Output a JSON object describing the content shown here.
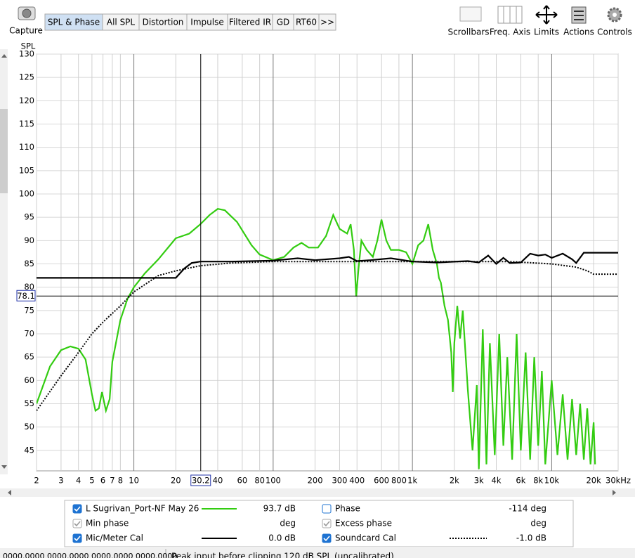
{
  "toolbar": {
    "capture": "Capture",
    "tabs": [
      "SPL & Phase",
      "All SPL",
      "Distortion",
      "Impulse",
      "Filtered IR",
      "GD",
      "RT60",
      ">>"
    ],
    "tools": [
      "Scrollbars",
      "Freq. Axis",
      "Limits",
      "Actions",
      "Controls"
    ]
  },
  "chart_data": {
    "type": "line",
    "ylabel": "SPL",
    "xscale": "log",
    "grid": true,
    "xlim": [
      2,
      30000
    ],
    "ylim": [
      40.6,
      130
    ],
    "xticks": [
      2,
      3,
      4,
      5,
      6,
      7,
      8,
      10,
      20,
      40,
      60,
      80,
      100,
      200,
      300,
      400,
      600,
      800,
      {
        "value": 1000,
        "label": "1k"
      },
      {
        "value": 2000,
        "label": "2k"
      },
      {
        "value": 3000,
        "label": "3k"
      },
      {
        "value": 4000,
        "label": "4k"
      },
      {
        "value": 6000,
        "label": "6k"
      },
      {
        "value": 8000,
        "label": "8k"
      },
      {
        "value": 10000,
        "label": "10k"
      },
      {
        "value": 20000,
        "label": "20k"
      },
      {
        "value": 30000,
        "label": "30kHz"
      }
    ],
    "yticks": [
      45,
      50,
      55,
      60,
      65,
      70,
      75,
      80,
      85,
      90,
      95,
      100,
      105,
      110,
      115,
      120,
      125,
      130
    ],
    "cursor_x": 30.2,
    "cursor_y": 78.1,
    "series": [
      {
        "name": "L Sugrivan_Port-NF May 26",
        "color": "#33cc11",
        "dash": "solid",
        "legend_value": "93.7 dB",
        "x": [
          2,
          2.5,
          3,
          3.5,
          4,
          4.5,
          5,
          5.3,
          5.6,
          5.9,
          6.3,
          6.7,
          7,
          8,
          9,
          10,
          12,
          15,
          20,
          25,
          30,
          35,
          40,
          45,
          55,
          70,
          80,
          100,
          120,
          140,
          160,
          180,
          210,
          240,
          270,
          300,
          340,
          360,
          380,
          395,
          410,
          430,
          470,
          520,
          560,
          600,
          650,
          700,
          800,
          900,
          1000,
          1100,
          1200,
          1300,
          1400,
          1500,
          1550,
          1600,
          1700,
          1800,
          1900,
          1950,
          2000,
          2100,
          2200,
          2300,
          2500,
          2700,
          2900,
          3000,
          3200,
          3400,
          3600,
          3900,
          4200,
          4500,
          4800,
          5200,
          5600,
          6000,
          6500,
          7000,
          7500,
          8000,
          8500,
          9000,
          10000,
          11000,
          12000,
          13000,
          14000,
          15000,
          16000,
          17000,
          18000,
          19000,
          20000,
          20500
        ],
        "values": [
          55,
          63,
          66.5,
          67.3,
          66.8,
          64.5,
          57,
          53.5,
          54,
          57.5,
          53.5,
          56,
          64,
          73,
          77.5,
          80,
          83,
          86,
          90.5,
          91.5,
          93.5,
          95.5,
          96.8,
          96.5,
          94,
          89,
          87,
          85.8,
          86.5,
          88.5,
          89.5,
          88.5,
          88.5,
          91,
          95.5,
          92.5,
          91.5,
          93.5,
          88,
          78,
          84,
          90,
          88,
          86.5,
          90,
          94.5,
          90,
          88,
          88,
          87.5,
          85,
          89,
          90,
          93.5,
          88,
          85,
          82,
          81,
          76,
          73,
          66,
          57.5,
          68,
          76,
          69,
          75,
          58,
          45,
          59,
          41,
          71,
          42,
          68,
          44,
          70,
          46,
          65,
          43,
          70,
          45,
          66,
          43,
          65,
          46,
          62,
          42,
          60,
          44,
          57,
          43,
          56,
          44,
          55,
          43,
          54,
          42,
          51,
          42
        ]
      },
      {
        "name": "Mic/Meter Cal",
        "color": "#000000",
        "dash": "solid",
        "legend_value": "0.0 dB",
        "x": [
          2,
          20,
          23,
          26,
          30,
          50,
          100,
          150,
          200,
          300,
          350,
          400,
          500,
          700,
          1000,
          1500,
          2500,
          3000,
          3500,
          4000,
          4500,
          5000,
          6000,
          7000,
          8000,
          9000,
          10000,
          12000,
          14000,
          15000,
          17000,
          20000,
          30000
        ],
        "values": [
          82,
          82,
          84,
          85.2,
          85.5,
          85.5,
          85.7,
          86.2,
          85.8,
          86.2,
          86.5,
          85.6,
          85.8,
          86.2,
          85.5,
          85.3,
          85.6,
          85.3,
          86.8,
          85,
          86.3,
          85.2,
          85.3,
          87.2,
          86.8,
          87,
          86.3,
          87.2,
          86,
          85.2,
          87.4,
          87.4,
          87.4
        ]
      },
      {
        "name": "Soundcard Cal",
        "color": "#000000",
        "dash": "dotted",
        "legend_value": "-1.0 dB",
        "x": [
          2,
          3,
          4,
          5,
          6,
          8,
          10,
          15,
          20,
          30,
          50,
          100,
          1000,
          5000,
          10000,
          15000,
          18000,
          20000,
          30000
        ],
        "values": [
          53.5,
          61,
          66,
          70,
          72.5,
          76,
          79,
          82.5,
          83.5,
          84.6,
          85.2,
          85.5,
          85.5,
          85.5,
          85,
          84.3,
          83.5,
          82.8,
          82.8
        ]
      }
    ]
  },
  "legend_extra": [
    {
      "label": "Phase",
      "value": "-114 deg",
      "checked": false
    },
    {
      "label": "Min phase",
      "value": "deg",
      "checked": true
    },
    {
      "label": "Excess phase",
      "value": "deg",
      "checked": true
    }
  ],
  "status": [
    "0000.0000  0000.0000  0000.0000  0000.0000",
    "Peak input before clipping 120 dB SPL (uncalibrated)"
  ]
}
